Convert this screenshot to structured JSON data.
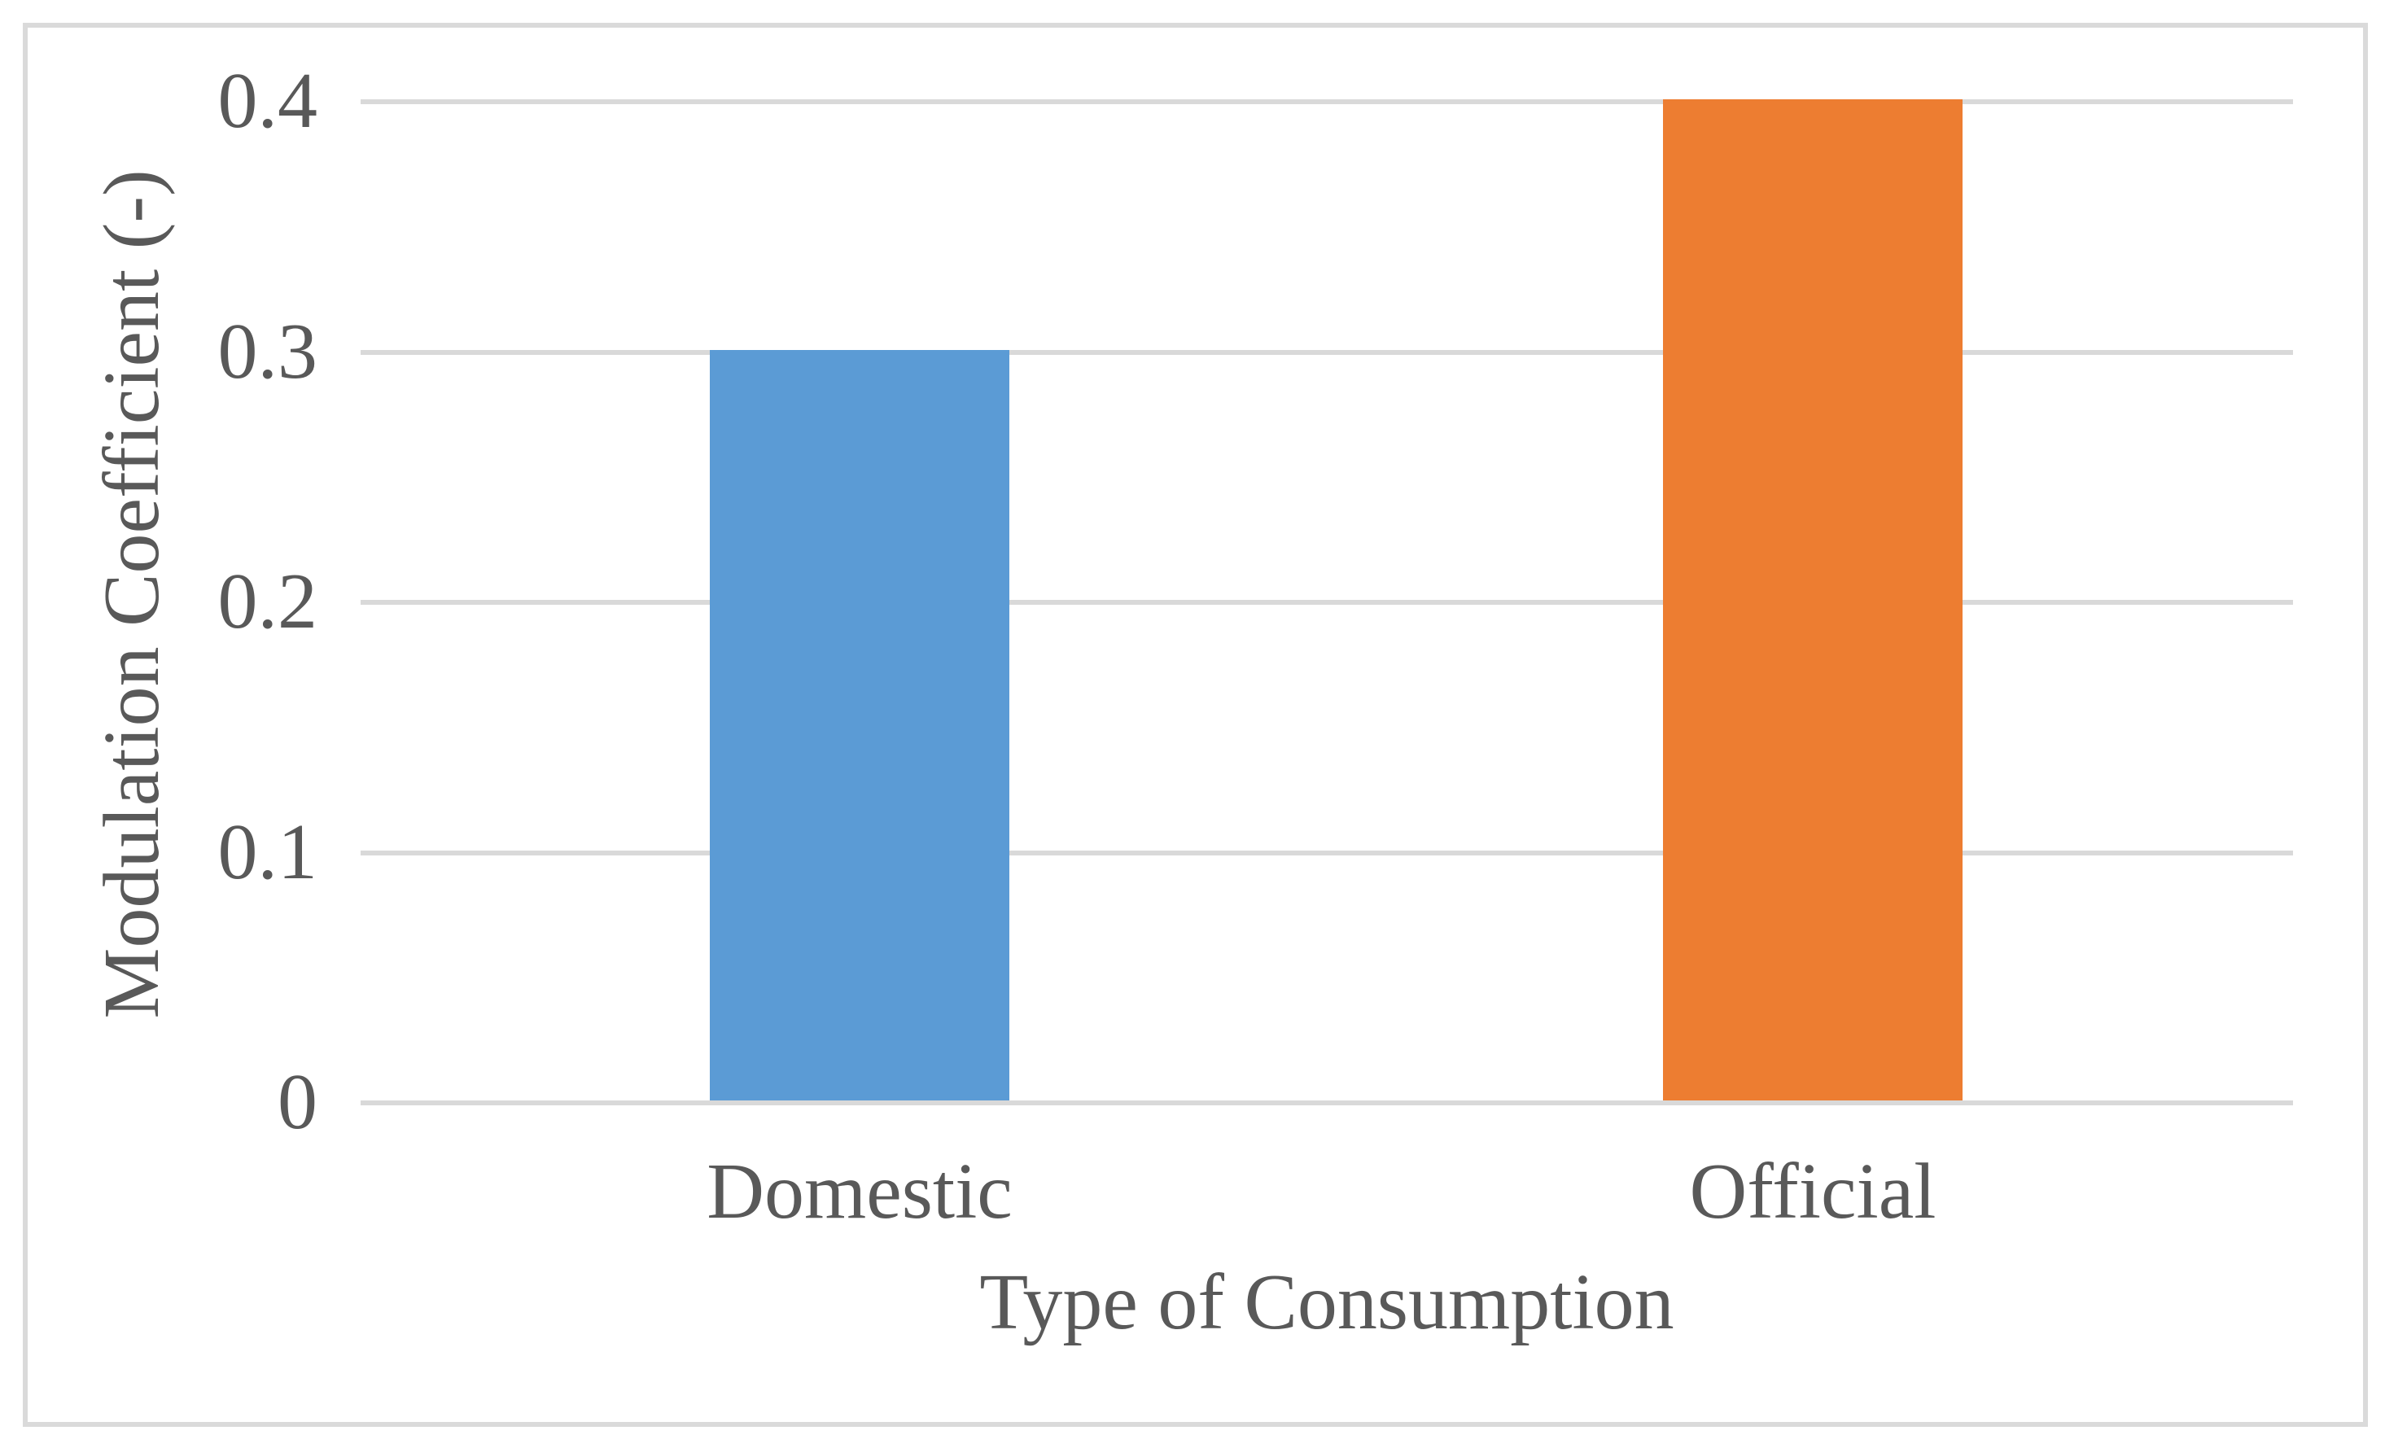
{
  "chart_data": {
    "type": "bar",
    "title": "",
    "categories": [
      "Domestic",
      "Official"
    ],
    "values": [
      0.3,
      0.4
    ],
    "series_colors": [
      "#5B9BD5",
      "#ED7D31"
    ],
    "xlabel": "Type of Consumption",
    "ylabel": "Modulation Coefficient (-)",
    "ylim": [
      0,
      0.4
    ],
    "yticks": [
      0,
      0.1,
      0.2,
      0.3,
      0.4
    ],
    "ytick_labels": [
      "0",
      "0.1",
      "0.2",
      "0.3",
      "0.4"
    ],
    "grid": "horizontal",
    "gridline_color": "#D9D9D9",
    "text_color": "#595959",
    "frame_border_color": "#DADADA",
    "legend": "none",
    "background": "#FFFFFF"
  }
}
